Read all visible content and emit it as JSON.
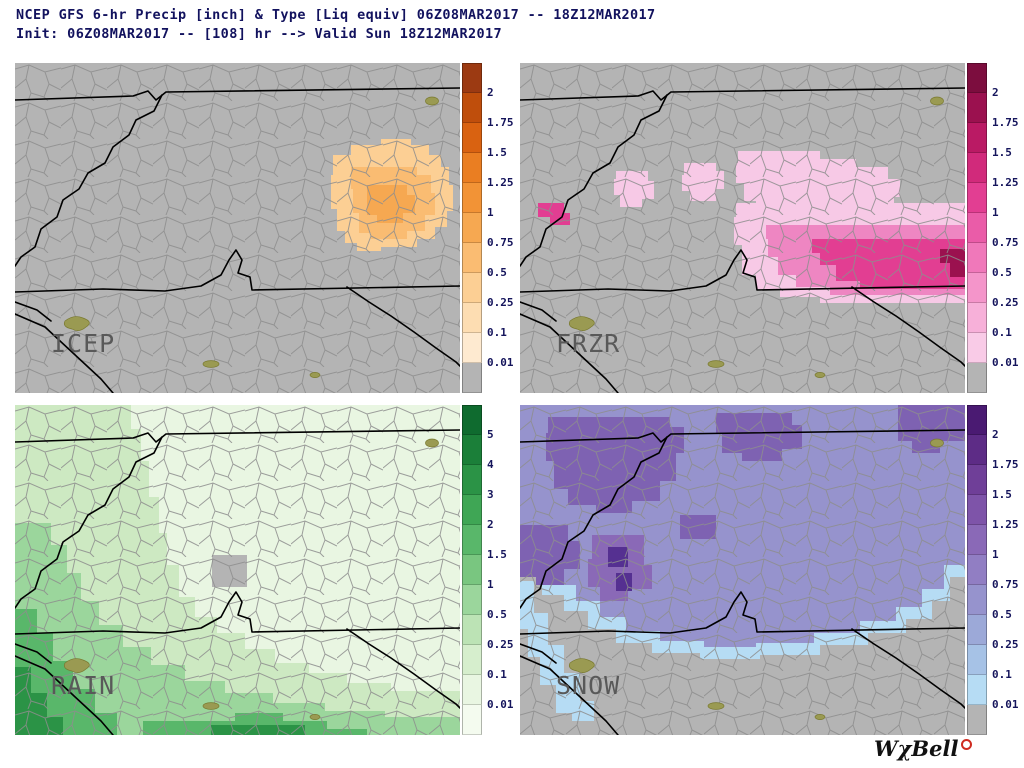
{
  "header": {
    "line1": "NCEP GFS 6-hr Precip [inch] & Type [Liq equiv] 06Z08MAR2017 -- 18Z12MAR2017",
    "line2": "Init: 06Z08MAR2017 -- [108] hr --> Valid Sun 18Z12MAR2017"
  },
  "units": "inch",
  "panels": [
    {
      "id": "icep",
      "label": "ICEP",
      "colorbar": {
        "ticks": [
          "2",
          "1.75",
          "1.5",
          "1.25",
          "1",
          "0.75",
          "0.5",
          "0.25",
          "0.1",
          "0.01"
        ],
        "colors": [
          "#9c3a12",
          "#bf4e0c",
          "#d96211",
          "#ea7e22",
          "#f29336",
          "#f6a851",
          "#fabc72",
          "#fccf94",
          "#fdddb2",
          "#feead0",
          "#b4b4b4"
        ]
      }
    },
    {
      "id": "frzr",
      "label": "FRZR",
      "colorbar": {
        "ticks": [
          "2",
          "1.75",
          "1.5",
          "1.25",
          "1",
          "0.75",
          "0.5",
          "0.25",
          "0.1",
          "0.01"
        ],
        "colors": [
          "#7c0d3e",
          "#9b114f",
          "#ba1a64",
          "#d12a7b",
          "#e23e92",
          "#ea5ca8",
          "#f078ba",
          "#f495ca",
          "#f7b0d9",
          "#f9cbe7",
          "#b4b4b4"
        ]
      }
    },
    {
      "id": "rain",
      "label": "RAIN",
      "colorbar": {
        "ticks": [
          "5",
          "4",
          "3",
          "2",
          "1.5",
          "1",
          "0.5",
          "0.25",
          "0.1",
          "0.01"
        ],
        "colors": [
          "#0f6b2f",
          "#1b7f39",
          "#2b9346",
          "#3fa655",
          "#59b76a",
          "#79c680",
          "#9bd69c",
          "#bce3b5",
          "#d6eecd",
          "#e9f6e2",
          "#f4fbef"
        ]
      }
    },
    {
      "id": "snow",
      "label": "SNOW",
      "colorbar": {
        "ticks": [
          "2",
          "1.75",
          "1.5",
          "1.25",
          "1",
          "0.75",
          "0.5",
          "0.25",
          "0.1",
          "0.01"
        ],
        "colors": [
          "#4a1a72",
          "#5d2c86",
          "#6f3f98",
          "#7e54a9",
          "#8a69b7",
          "#917ec3",
          "#9693cd",
          "#9ca9d8",
          "#a6c2e6",
          "#b6dcf4",
          "#b4b4b4"
        ]
      }
    }
  ],
  "logo": {
    "text": "WχBell"
  }
}
